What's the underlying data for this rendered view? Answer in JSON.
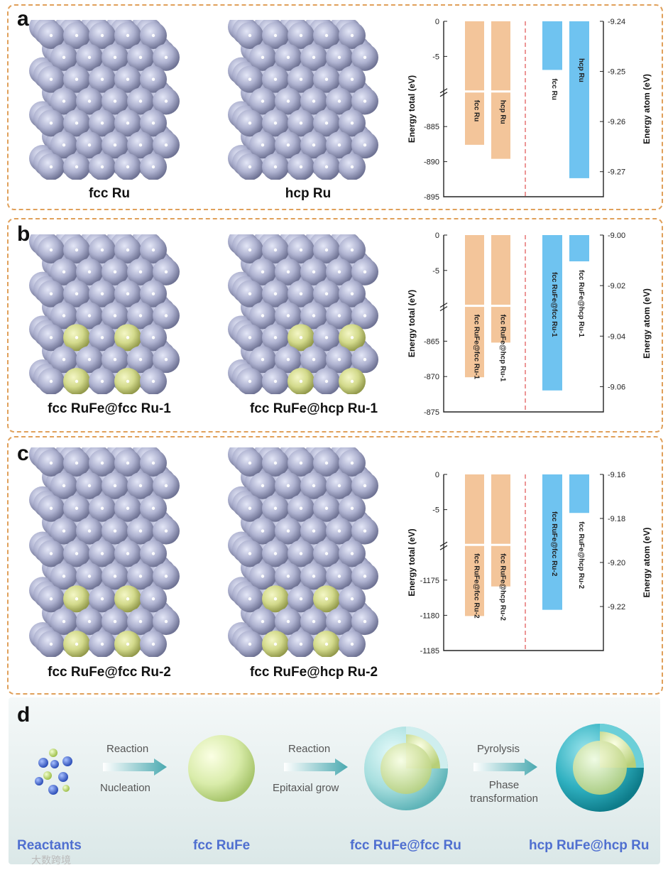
{
  "panels": [
    {
      "label": "a",
      "struct_captions": [
        "fcc Ru",
        "hcp Ru"
      ]
    },
    {
      "label": "b",
      "struct_captions": [
        "fcc RuFe@fcc Ru-1",
        "fcc RuFe@hcp Ru-1"
      ]
    },
    {
      "label": "c",
      "struct_captions": [
        "fcc RuFe@fcc Ru-2",
        "fcc RuFe@hcp Ru-2"
      ]
    }
  ],
  "chart_data": [
    {
      "type": "bar",
      "ylabel": "Energy total (eV)",
      "y2label": "Energy atom (eV)",
      "total_ticks": [
        "0",
        "-5",
        "-885",
        "-890",
        "-895"
      ],
      "atom_ticks": [
        "-9.24",
        "-9.25",
        "-9.26",
        "-9.27"
      ],
      "total_categories": [
        "fcc Ru",
        "hcp Ru"
      ],
      "total_values": [
        -887.6,
        -889.6
      ],
      "atom_categories": [
        "fcc Ru",
        "hcp Ru"
      ],
      "atom_values": [
        -9.2497,
        -9.2713
      ],
      "colors": {
        "total": "#f3c59a",
        "atom": "#6fc3f0"
      }
    },
    {
      "type": "bar",
      "ylabel": "Energy total (eV)",
      "y2label": "Energy atom (eV)",
      "total_ticks": [
        "0",
        "-5",
        "-865",
        "-870",
        "-875"
      ],
      "atom_ticks": [
        "-9.00",
        "-9.02",
        "-9.04",
        "-9.06"
      ],
      "total_categories": [
        "fcc RuFe@fcc Ru-1",
        "fcc RuFe@hcp Ru-1"
      ],
      "total_values": [
        -870.1,
        -865.2
      ],
      "atom_categories": [
        "fcc RuFe@fcc Ru-1",
        "fcc RuFe@hcp Ru-1"
      ],
      "atom_values": [
        -9.0615,
        -9.0104
      ],
      "colors": {
        "total": "#f3c59a",
        "atom": "#6fc3f0"
      }
    },
    {
      "type": "bar",
      "ylabel": "Energy total (eV)",
      "y2label": "Energy atom (eV)",
      "total_ticks": [
        "0",
        "-5",
        "-1175",
        "-1180",
        "-1185"
      ],
      "atom_ticks": [
        "-9.16",
        "-9.18",
        "-9.20",
        "-9.22"
      ],
      "total_categories": [
        "fcc RuFe@fcc Ru-2",
        "fcc RuFe@hcp Ru-2"
      ],
      "total_values": [
        -1180.1,
        -1175.9
      ],
      "atom_categories": [
        "fcc RuFe@fcc Ru-2",
        "fcc RuFe@hcp Ru-2"
      ],
      "atom_values": [
        -9.2215,
        -9.1775
      ],
      "colors": {
        "total": "#f3c59a",
        "atom": "#6fc3f0"
      }
    }
  ],
  "scheme": {
    "label": "d",
    "arrows": [
      {
        "top": "Reaction",
        "bottom": "Nucleation"
      },
      {
        "top": "Reaction",
        "bottom": "Epitaxial grow"
      },
      {
        "top": "Pyrolysis",
        "bottom": "Phase transformation"
      }
    ],
    "labels": [
      "Reactants",
      "fcc RuFe",
      "fcc RuFe@fcc Ru",
      "hcp RuFe@hcp Ru"
    ]
  },
  "watermark": "大数跨境"
}
